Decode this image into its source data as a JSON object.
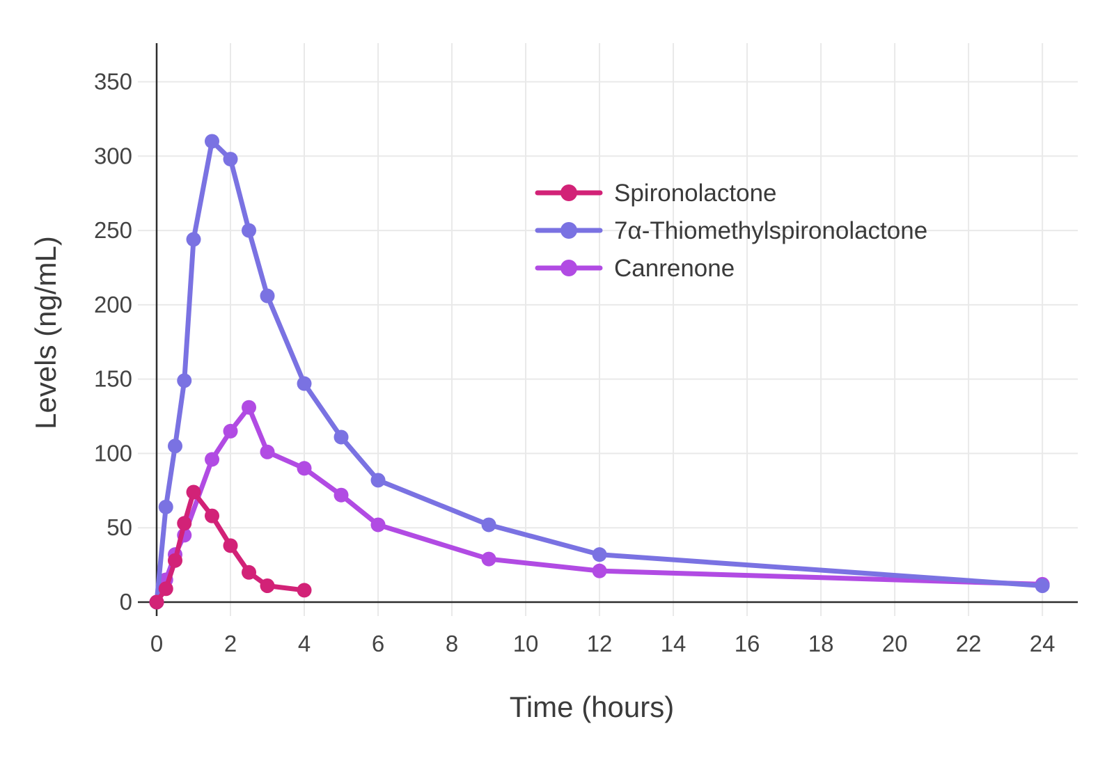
{
  "chart_data": {
    "type": "line",
    "title": "",
    "xlabel": "Time (hours)",
    "ylabel": "Levels (ng/mL)",
    "x_ticks": [
      0,
      2,
      4,
      6,
      8,
      10,
      12,
      14,
      16,
      18,
      20,
      22,
      24
    ],
    "y_ticks": [
      0,
      50,
      100,
      150,
      200,
      250,
      300,
      350
    ],
    "xlim": [
      0,
      24.96
    ],
    "ylim": [
      0,
      376
    ],
    "grid": true,
    "legend_position": "inside-top-right",
    "series": [
      {
        "name": "Spironolactone",
        "color": "#D22277",
        "x": [
          0,
          0.25,
          0.5,
          0.75,
          1,
          1.5,
          2,
          2.5,
          3,
          4
        ],
        "y": [
          0,
          9,
          28,
          53,
          74,
          58,
          38,
          20,
          11,
          8
        ]
      },
      {
        "name": "7α-Thiomethylspironolactone",
        "color": "#7A72E2",
        "x": [
          0,
          0.25,
          0.5,
          0.75,
          1,
          1.5,
          2,
          2.5,
          3,
          4,
          5,
          6,
          9,
          12,
          24
        ],
        "y": [
          0,
          64,
          105,
          149,
          244,
          310,
          298,
          250,
          206,
          147,
          111,
          82,
          52,
          32,
          11
        ]
      },
      {
        "name": "Canrenone",
        "color": "#B14BE3",
        "x": [
          0,
          0.25,
          0.5,
          0.75,
          1.5,
          2,
          2.5,
          3,
          4,
          5,
          6,
          9,
          12,
          24
        ],
        "y": [
          0,
          15,
          32,
          45,
          96,
          115,
          131,
          101,
          90,
          72,
          52,
          29,
          21,
          12
        ]
      }
    ],
    "style": {
      "background": "#ffffff",
      "grid_color": "#e9e9e9",
      "axis_color": "#2d2d2d",
      "tick_color": "#444444",
      "axis_title_color": "#3b3b3b",
      "legend_text_color": "#3a3a3a"
    }
  }
}
